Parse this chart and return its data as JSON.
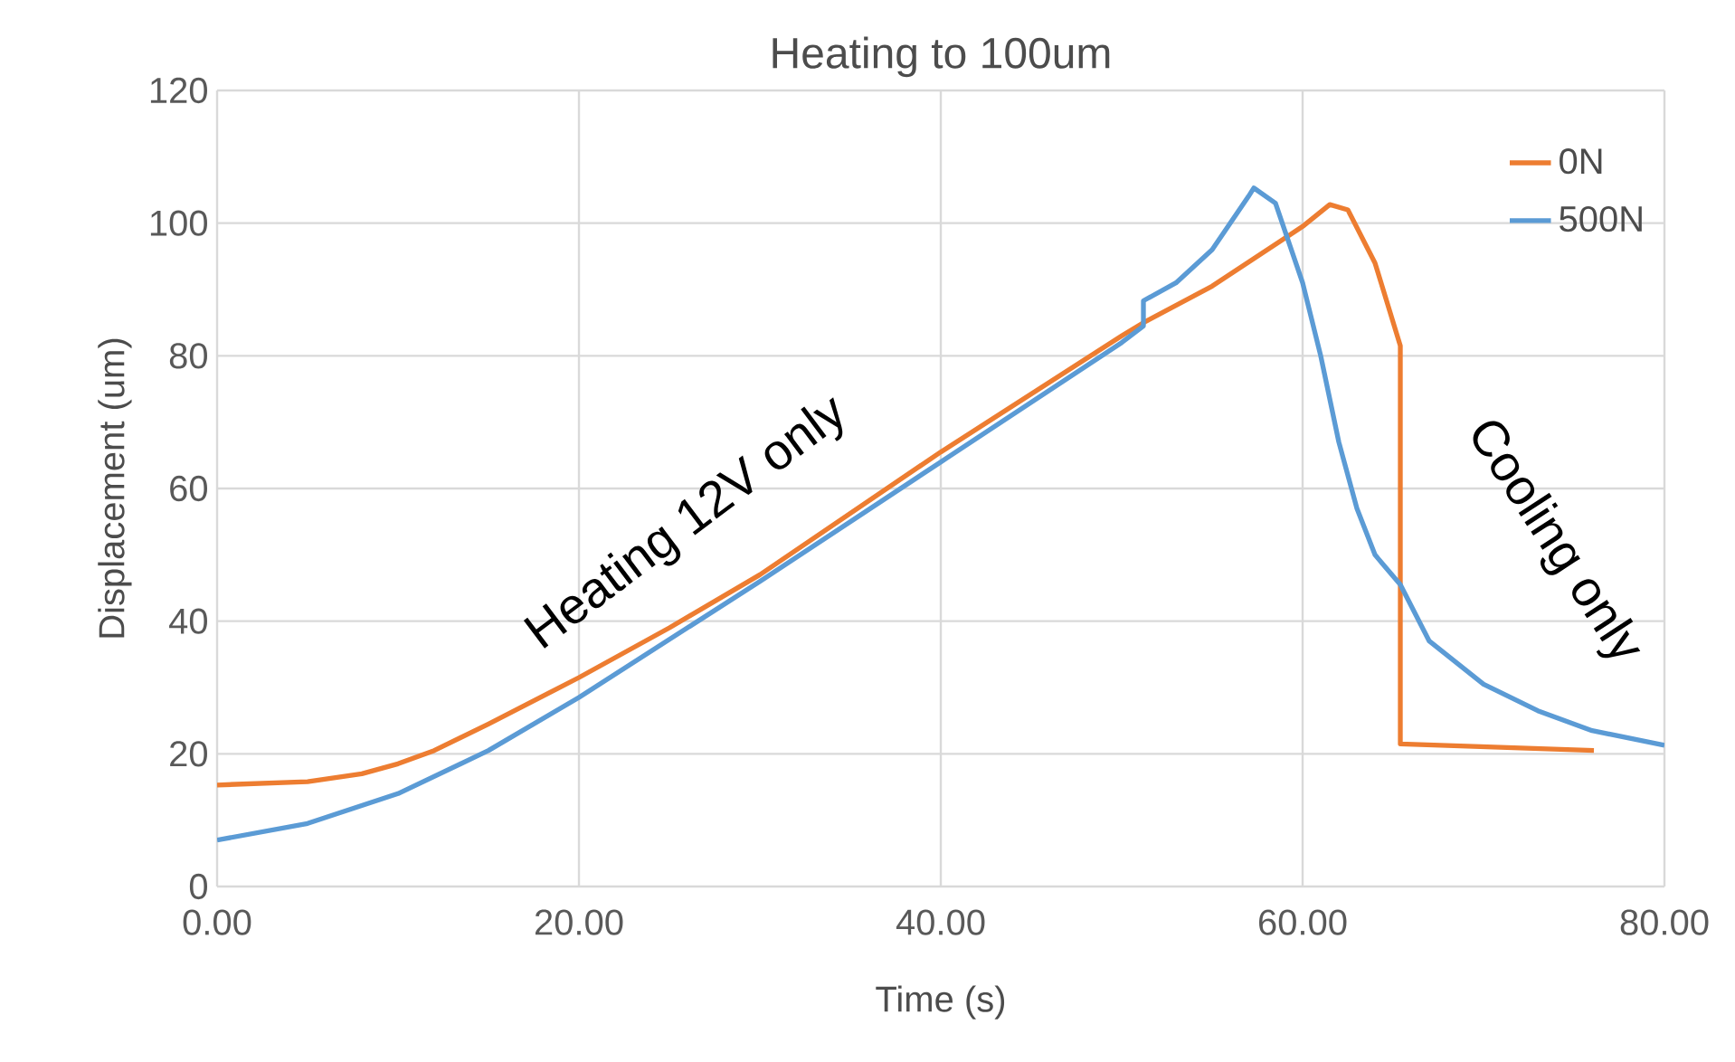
{
  "chart_data": {
    "type": "line",
    "title": "Heating to 100um",
    "xlabel": "Time (s)",
    "ylabel": "Displacement (um)",
    "xlim": [
      0,
      80
    ],
    "ylim": [
      0,
      120
    ],
    "xticks": [
      {
        "value": 0,
        "label": "0.00"
      },
      {
        "value": 20,
        "label": "20.00"
      },
      {
        "value": 40,
        "label": "40.00"
      },
      {
        "value": 60,
        "label": "60.00"
      },
      {
        "value": 80,
        "label": "80.00"
      }
    ],
    "yticks": [
      0,
      20,
      40,
      60,
      80,
      100,
      120
    ],
    "grid": true,
    "legend": "top right",
    "marker": "none",
    "line_style": "solid",
    "annotations": [
      "Heating 12V only",
      "Cooling only"
    ],
    "series": [
      {
        "name": "0N",
        "color": "#ed7d31",
        "x": [
          0,
          5,
          8,
          10,
          12,
          15,
          20,
          25,
          30,
          40,
          50,
          51.2,
          55,
          60,
          61.5,
          62.5,
          64,
          65.4,
          65.4,
          76.1
        ],
        "values": [
          15.3,
          15.8,
          17,
          18.5,
          20.5,
          24.5,
          31.5,
          39,
          47,
          65.5,
          83,
          85,
          90.5,
          99.5,
          102.8,
          102,
          94,
          81.5,
          21.5,
          20.5
        ]
      },
      {
        "name": "500N",
        "color": "#5b9bd5",
        "x": [
          0,
          5,
          10,
          15,
          20,
          30,
          40,
          50,
          51.2,
          51.2,
          53,
          55,
          57,
          57.3,
          58.5,
          60,
          61,
          62,
          63,
          64,
          65.4,
          67,
          70,
          73,
          76,
          80
        ],
        "values": [
          7,
          9.5,
          14,
          20.5,
          28.5,
          46,
          64,
          82,
          84.5,
          88.3,
          91,
          96,
          104,
          105.3,
          103,
          91,
          80,
          67,
          57,
          50,
          45.5,
          37,
          30.5,
          26.5,
          23.5,
          21.3
        ]
      }
    ]
  }
}
